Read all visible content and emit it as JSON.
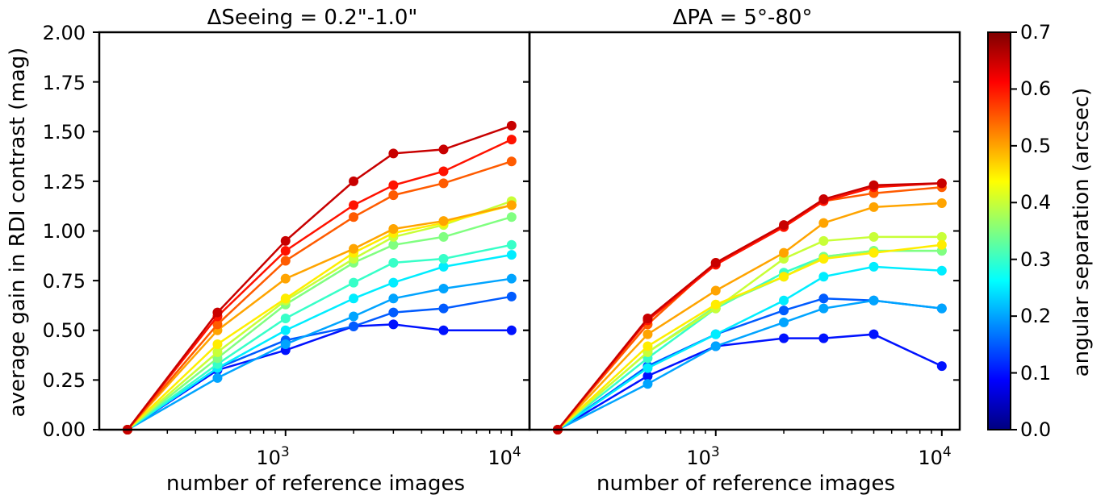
{
  "chart_data": [
    {
      "type": "line",
      "title": "ΔSeeing = 0.2\"-1.0\"",
      "xlabel": "number of reference images",
      "ylabel": "average gain in RDI contrast (mag)",
      "xscale": "log",
      "xlim": [
        150,
        12000
      ],
      "ylim": [
        0,
        2.0
      ],
      "x_tick_labels": [
        "10",
        "10"
      ],
      "x_tick_exponents": [
        "3",
        "4"
      ],
      "y_tick_labels": [
        "0.00",
        "0.25",
        "0.50",
        "0.75",
        "1.00",
        "1.25",
        "1.50",
        "1.75",
        "2.00"
      ],
      "y_ticks": [
        0,
        0.25,
        0.5,
        0.75,
        1.0,
        1.25,
        1.5,
        1.75,
        2.0
      ],
      "x": [
        200,
        500,
        1000,
        2000,
        3000,
        5000,
        10000
      ],
      "series": [
        {
          "separation": 0.1,
          "values": [
            0,
            0.3,
            0.4,
            0.52,
            0.53,
            0.5,
            0.5
          ]
        },
        {
          "separation": 0.15,
          "values": [
            0,
            0.31,
            0.45,
            0.52,
            0.59,
            0.61,
            0.67
          ]
        },
        {
          "separation": 0.2,
          "values": [
            0,
            0.26,
            0.43,
            0.57,
            0.66,
            0.71,
            0.76
          ]
        },
        {
          "separation": 0.25,
          "values": [
            0,
            0.31,
            0.5,
            0.66,
            0.74,
            0.82,
            0.88
          ]
        },
        {
          "separation": 0.3,
          "values": [
            0,
            0.33,
            0.56,
            0.74,
            0.84,
            0.86,
            0.93
          ]
        },
        {
          "separation": 0.35,
          "values": [
            0,
            0.36,
            0.63,
            0.84,
            0.93,
            0.97,
            1.07
          ]
        },
        {
          "separation": 0.4,
          "values": [
            0,
            0.39,
            0.65,
            0.86,
            0.97,
            1.03,
            1.15
          ]
        },
        {
          "separation": 0.45,
          "values": [
            0,
            0.43,
            0.66,
            0.89,
            0.99,
            1.04,
            1.13
          ]
        },
        {
          "separation": 0.5,
          "values": [
            0,
            0.5,
            0.76,
            0.91,
            1.01,
            1.05,
            1.13
          ]
        },
        {
          "separation": 0.55,
          "values": [
            0,
            0.53,
            0.85,
            1.07,
            1.18,
            1.24,
            1.35
          ]
        },
        {
          "separation": 0.6,
          "values": [
            0,
            0.57,
            0.9,
            1.13,
            1.23,
            1.3,
            1.46
          ]
        },
        {
          "separation": 0.65,
          "values": [
            0,
            0.59,
            0.95,
            1.25,
            1.39,
            1.41,
            1.53
          ]
        }
      ]
    },
    {
      "type": "line",
      "title": "ΔPA = 5°-80°",
      "xlabel": "number of reference images",
      "ylabel": "",
      "xscale": "log",
      "xlim": [
        150,
        12000
      ],
      "ylim": [
        0,
        2.0
      ],
      "x_tick_labels": [
        "10",
        "10"
      ],
      "x_tick_exponents": [
        "3",
        "4"
      ],
      "x": [
        200,
        500,
        1000,
        2000,
        3000,
        5000,
        10000
      ],
      "series": [
        {
          "separation": 0.1,
          "values": [
            0,
            0.27,
            0.42,
            0.46,
            0.46,
            0.48,
            0.32
          ]
        },
        {
          "separation": 0.15,
          "values": [
            0,
            0.32,
            0.48,
            0.6,
            0.66,
            0.65,
            0.61
          ]
        },
        {
          "separation": 0.2,
          "values": [
            0,
            0.23,
            0.42,
            0.54,
            0.61,
            0.65,
            0.61
          ]
        },
        {
          "separation": 0.25,
          "values": [
            0,
            0.31,
            0.48,
            0.65,
            0.77,
            0.82,
            0.8
          ]
        },
        {
          "separation": 0.3,
          "values": [
            0,
            0.36,
            0.61,
            0.79,
            0.87,
            0.9,
            0.9
          ]
        },
        {
          "separation": 0.35,
          "values": [
            0,
            0.39,
            0.62,
            0.77,
            0.87,
            0.9,
            0.9
          ]
        },
        {
          "separation": 0.4,
          "values": [
            0,
            0.39,
            0.61,
            0.86,
            0.95,
            0.97,
            0.97
          ]
        },
        {
          "separation": 0.45,
          "values": [
            0,
            0.42,
            0.63,
            0.77,
            0.86,
            0.89,
            0.93
          ]
        },
        {
          "separation": 0.5,
          "values": [
            0,
            0.48,
            0.7,
            0.89,
            1.04,
            1.12,
            1.14
          ]
        },
        {
          "separation": 0.55,
          "values": [
            0,
            0.53,
            0.84,
            1.02,
            1.15,
            1.19,
            1.22
          ]
        },
        {
          "separation": 0.6,
          "values": [
            0,
            0.55,
            0.83,
            1.02,
            1.15,
            1.22,
            1.24
          ]
        },
        {
          "separation": 0.65,
          "values": [
            0,
            0.56,
            0.84,
            1.03,
            1.16,
            1.23,
            1.24
          ]
        }
      ]
    }
  ],
  "colorbar": {
    "label": "angular separation (arcsec)",
    "colormap": "jet",
    "range": [
      0.0,
      0.7
    ],
    "tick_labels": [
      "0.0",
      "0.1",
      "0.2",
      "0.3",
      "0.4",
      "0.5",
      "0.6",
      "0.7"
    ],
    "ticks": [
      0.0,
      0.1,
      0.2,
      0.3,
      0.4,
      0.5,
      0.6,
      0.7
    ]
  }
}
